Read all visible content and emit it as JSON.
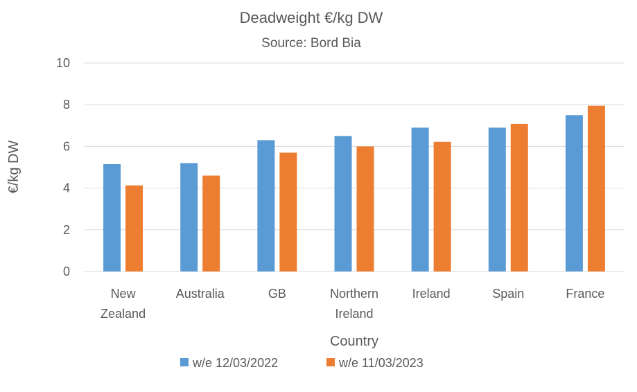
{
  "chart_data": {
    "type": "bar",
    "title": "Deadweight €/kg DW",
    "subtitle": "Source: Bord Bia",
    "xlabel": "Country",
    "ylabel": "€/kg DW",
    "ylim": [
      0,
      10
    ],
    "yticks": [
      0,
      2,
      4,
      6,
      8,
      10
    ],
    "grid": true,
    "legend_position": "bottom",
    "categories": [
      [
        "New",
        "Zealand"
      ],
      [
        "Australia"
      ],
      [
        "GB"
      ],
      [
        "Northern",
        "Ireland"
      ],
      [
        "Ireland"
      ],
      [
        "Spain"
      ],
      [
        "France"
      ]
    ],
    "series": [
      {
        "name": "w/e 12/03/2022",
        "color": "#5b9bd5",
        "values": [
          5.15,
          5.2,
          6.3,
          6.5,
          6.9,
          6.9,
          7.5
        ]
      },
      {
        "name": "w/e 11/03/2023",
        "color": "#ed7d31",
        "values": [
          4.13,
          4.6,
          5.7,
          6.0,
          6.22,
          7.08,
          7.95
        ]
      }
    ]
  }
}
